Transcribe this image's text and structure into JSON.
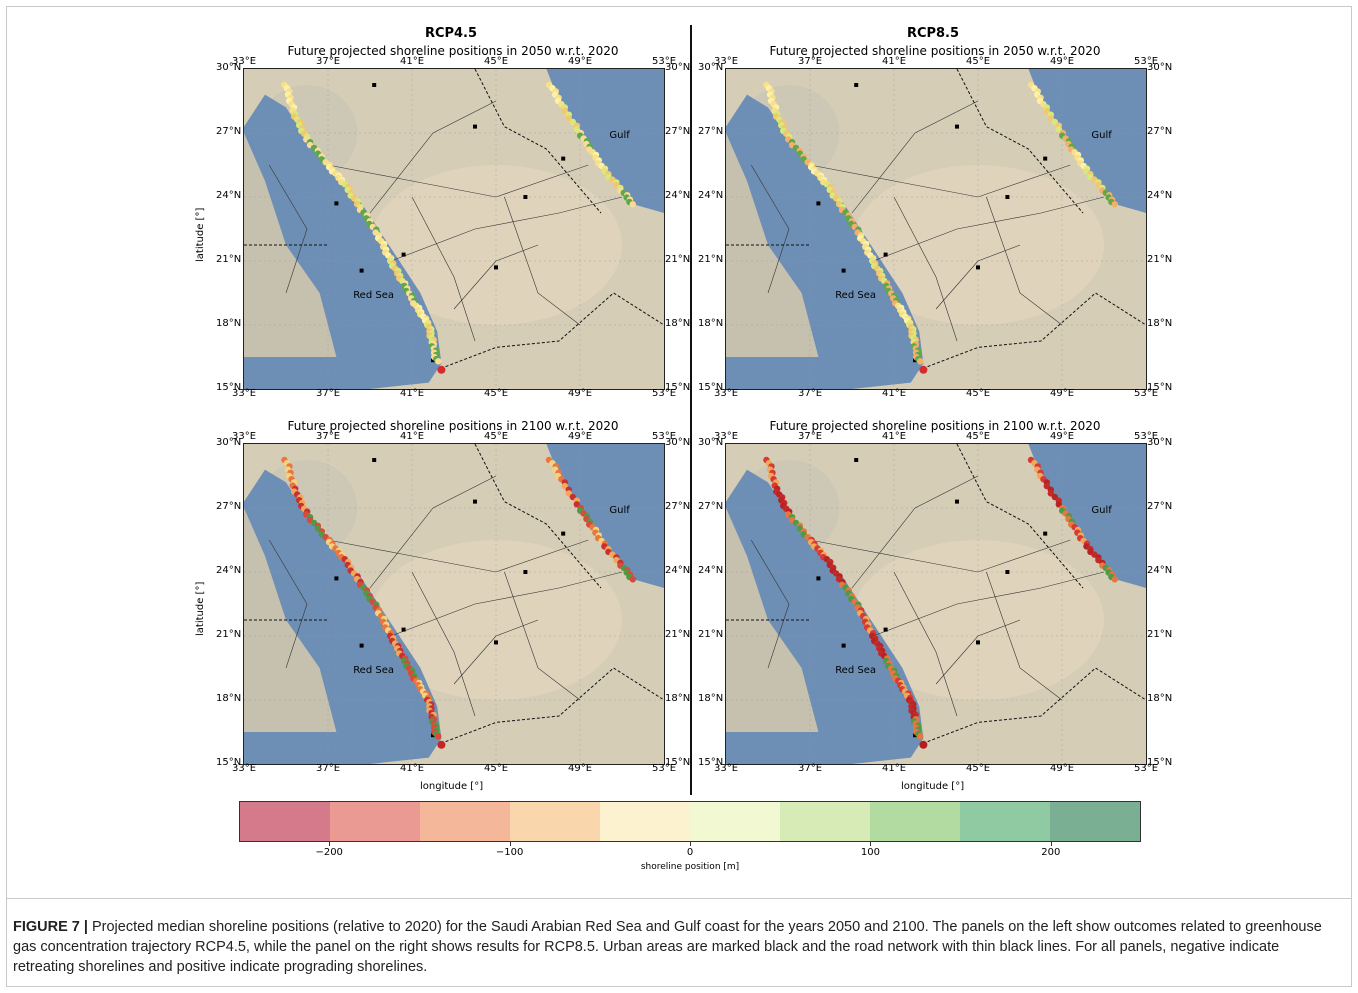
{
  "columns": [
    {
      "title": "RCP4.5"
    },
    {
      "title": "RCP8.5"
    }
  ],
  "panels": [
    {
      "title": "Future projected shoreline positions in 2050 w.r.t. 2020",
      "scenario": "RCP4.5",
      "year": "2050",
      "colors": [
        "#f6e08a",
        "#f4c66e",
        "#f8dc95",
        "#fff1a3",
        "#d9e87a",
        "#5fa84a"
      ],
      "extremes": [
        "#d42b2b"
      ]
    },
    {
      "title": "Future projected shoreline positions in 2050 w.r.t. 2020",
      "scenario": "RCP8.5",
      "year": "2050",
      "colors": [
        "#f6e08a",
        "#f4c66e",
        "#f3b06a",
        "#fff1a3",
        "#d9e87a",
        "#5fa84a"
      ],
      "extremes": [
        "#d42b2b"
      ]
    },
    {
      "title": "Future projected shoreline positions in 2100 w.r.t. 2020",
      "scenario": "RCP4.5",
      "year": "2100",
      "colors": [
        "#e8763f",
        "#f2a85a",
        "#d94a3a",
        "#f6d27e",
        "#c93030",
        "#4e9a45"
      ],
      "extremes": [
        "#c42626"
      ]
    },
    {
      "title": "Future projected shoreline positions in 2100 w.r.t. 2020",
      "scenario": "RCP8.5",
      "year": "2100",
      "colors": [
        "#d63a32",
        "#c42a2a",
        "#e8763f",
        "#f2a85a",
        "#b82424",
        "#4e9a45"
      ],
      "extremes": [
        "#b02020"
      ]
    }
  ],
  "axes": {
    "lon_ticks": [
      "33°E",
      "37°E",
      "41°E",
      "45°E",
      "49°E",
      "53°E"
    ],
    "lat_ticks": [
      "30°N",
      "27°N",
      "24°N",
      "21°N",
      "18°N",
      "15°N"
    ],
    "xlabel": "longitude [°]",
    "ylabel": "latitude [°]"
  },
  "map_labels": {
    "red_sea": "Red Sea",
    "gulf": "Gulf"
  },
  "colorbar": {
    "label": "shoreline position [m]",
    "ticks": [
      "−200",
      "−100",
      "0",
      "100",
      "200"
    ],
    "tick_values": [
      -200,
      -100,
      0,
      100,
      200
    ],
    "range": [
      -250,
      250
    ],
    "colors": [
      "#d47a8a",
      "#ea9a92",
      "#f5b79a",
      "#fad6ad",
      "#fdf2cf",
      "#f2f8d2",
      "#d7ebb6",
      "#b1dba0",
      "#8fcaa2",
      "#7aaf94"
    ]
  },
  "colors": {
    "sea": "#6e8fb5",
    "land": "#d6cdb7"
  },
  "caption": {
    "label": "FIGURE 7 |",
    "text": " Projected median shoreline positions (relative to 2020) for the Saudi Arabian Red Sea and Gulf coast for the years 2050 and 2100. The panels on the left show outcomes related to greenhouse gas concentration trajectory RCP4.5, while the panel on the right shows results for RCP8.5. Urban areas are marked black and the road network with thin black lines. For all panels, negative indicate retreating shorelines and positive indicate prograding shorelines."
  }
}
